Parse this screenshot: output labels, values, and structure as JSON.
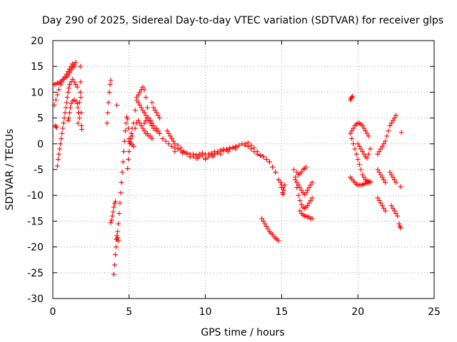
{
  "chart_data": {
    "type": "scatter",
    "title": "Day 290 of 2025, Sidereal Day-to-day VTEC variation (SDTVAR) for receiver glps",
    "xlabel": "GPS time / hours",
    "ylabel": "SDTVAR / TECUs",
    "xlim": [
      0,
      25
    ],
    "ylim": [
      -30,
      20
    ],
    "xticks": [
      0,
      5,
      10,
      15,
      20,
      25
    ],
    "yticks": [
      -30,
      -25,
      -20,
      -15,
      -10,
      -5,
      0,
      5,
      10,
      15,
      20
    ],
    "xtick_labels": [
      "0",
      "5",
      "10",
      "15",
      "20",
      "25"
    ],
    "ytick_labels": [
      "-30",
      "-25",
      "-20",
      "-15",
      "-10",
      "-5",
      "0",
      "5",
      "10",
      "15",
      "20"
    ],
    "grid": true,
    "marker": "+",
    "color": "#ff0000",
    "series": [
      {
        "name": "s01",
        "x": [
          0.1,
          0.2,
          0.3,
          0.4,
          0.5,
          0.6,
          0.7,
          0.8,
          0.9,
          1.0,
          1.1,
          1.2,
          1.3,
          1.4
        ],
        "y": [
          7.5,
          8.5,
          9.5,
          10.5,
          11.5,
          12.0,
          12.5,
          13.0,
          13.5,
          14.0,
          14.5,
          15.0,
          15.5,
          15.0
        ]
      },
      {
        "name": "s02",
        "x": [
          0.1,
          0.2,
          0.3,
          0.4,
          0.5,
          0.6,
          0.7,
          0.8,
          0.9,
          1.0,
          1.1,
          1.2,
          1.3,
          1.4,
          1.5
        ],
        "y": [
          11.5,
          11.6,
          11.8,
          11.8,
          12.0,
          12.3,
          12.5,
          12.8,
          13.0,
          13.3,
          13.8,
          14.3,
          14.8,
          15.3,
          15.8
        ]
      },
      {
        "name": "s03",
        "x": [
          0.15,
          0.2,
          0.25
        ],
        "y": [
          3.5,
          3.3,
          3.2
        ]
      },
      {
        "name": "s04",
        "x": [
          0.3,
          0.35,
          0.4,
          0.45,
          0.5,
          0.55,
          0.6,
          0.65,
          0.7,
          0.75,
          0.8,
          0.85,
          0.9,
          0.95,
          1.0,
          1.05,
          1.1,
          1.2,
          1.3,
          1.4,
          1.5,
          1.6
        ],
        "y": [
          -4.3,
          -3.0,
          -2.0,
          -1.0,
          0.0,
          1.0,
          2.0,
          3.0,
          4.0,
          5.0,
          6.0,
          7.0,
          8.0,
          9.0,
          10.0,
          10.8,
          11.5,
          12.0,
          12.5,
          12.0,
          11.5,
          11.0
        ]
      },
      {
        "name": "s05",
        "x": [
          1.0,
          1.05,
          1.1,
          1.15,
          1.2,
          1.3,
          1.4,
          1.5,
          1.6,
          1.65,
          1.7,
          1.75
        ],
        "y": [
          4.5,
          5.0,
          6.0,
          7.0,
          7.8,
          8.3,
          8.5,
          8.3,
          7.8,
          7.0,
          6.0,
          5.0
        ]
      },
      {
        "name": "s06",
        "x": [
          1.8,
          1.82,
          1.84,
          1.86,
          1.88,
          1.9
        ],
        "y": [
          15.0,
          12.0,
          9.0,
          6.0,
          3.5,
          2.8
        ]
      },
      {
        "name": "s07",
        "x": [
          1.65,
          1.7,
          1.75,
          1.8
        ],
        "y": [
          4.0,
          6.0,
          8.0,
          10.0
        ]
      },
      {
        "name": "s08",
        "x": [
          3.55,
          3.6,
          3.65,
          3.7,
          3.75,
          3.8
        ],
        "y": [
          4.0,
          6.0,
          8.0,
          10.0,
          11.5,
          12.3
        ]
      },
      {
        "name": "s09",
        "x": [
          3.8,
          3.85,
          3.9,
          3.95,
          4.0,
          4.05,
          4.1
        ],
        "y": [
          -15.3,
          -14.8,
          -14.0,
          -13.2,
          -12.3,
          -11.6,
          -11.2
        ]
      },
      {
        "name": "s10",
        "x": [
          4.0,
          4.05,
          4.1,
          4.15,
          4.2,
          4.25,
          4.3,
          4.35,
          4.4,
          4.45,
          4.5,
          4.55,
          4.6,
          4.65,
          4.7,
          4.75,
          4.8,
          4.85,
          4.9,
          4.95,
          5.0
        ],
        "y": [
          -25.3,
          -23.5,
          -21.5,
          -20.0,
          -18.5,
          -17.0,
          -15.5,
          -13.5,
          -11.5,
          -9.5,
          -7.5,
          -5.5,
          -3.5,
          -1.5,
          0.5,
          2.5,
          4.0,
          5.2,
          4.8,
          3.0,
          1.0
        ]
      },
      {
        "name": "s11",
        "x": [
          4.15,
          4.2,
          4.25,
          4.3
        ],
        "y": [
          -18.5,
          -17.8,
          -18.2,
          -18.8
        ]
      },
      {
        "name": "s12",
        "x": [
          4.2
        ],
        "y": [
          7.5
        ]
      },
      {
        "name": "s13",
        "x": [
          4.9,
          4.95,
          5.0,
          5.05,
          5.1,
          5.15,
          5.2
        ],
        "y": [
          -4.8,
          -3.0,
          -1.5,
          0.0,
          1.0,
          2.0,
          3.0
        ]
      },
      {
        "name": "s14",
        "x": [
          5.0,
          5.1,
          5.2,
          5.3
        ],
        "y": [
          0.5,
          0.2,
          -0.2,
          -0.5
        ]
      },
      {
        "name": "s15",
        "x": [
          5.2,
          5.3,
          5.4,
          5.5,
          5.6,
          5.7,
          5.8,
          5.9,
          6.0,
          6.1,
          6.2,
          6.3
        ],
        "y": [
          1.5,
          4.0,
          6.5,
          8.5,
          9.5,
          10.0,
          10.5,
          11.0,
          10.5,
          9.0,
          7.0,
          5.0
        ]
      },
      {
        "name": "s16",
        "x": [
          5.4,
          5.5,
          5.6,
          5.7,
          5.8,
          5.9,
          6.0,
          6.1,
          6.2,
          6.3,
          6.4,
          6.5
        ],
        "y": [
          3.0,
          4.0,
          4.5,
          4.0,
          3.5,
          3.0,
          2.5,
          2.0,
          2.0,
          1.5,
          1.5,
          1.0
        ]
      },
      {
        "name": "s17",
        "x": [
          5.5,
          5.6,
          5.7,
          5.8,
          5.9,
          6.0,
          6.1,
          6.2,
          6.3,
          6.4,
          6.5,
          6.6,
          6.8,
          7.0
        ],
        "y": [
          9.0,
          8.0,
          7.5,
          7.0,
          6.5,
          6.0,
          5.5,
          5.0,
          4.5,
          4.0,
          3.5,
          3.0,
          2.5,
          2.0
        ]
      },
      {
        "name": "s18",
        "x": [
          6.5,
          6.6,
          6.7,
          6.8,
          6.9,
          7.0
        ],
        "y": [
          8.0,
          7.0,
          6.5,
          6.0,
          5.5,
          5.0
        ]
      },
      {
        "name": "s19",
        "x": [
          6.0,
          6.1,
          6.2,
          6.3,
          6.4,
          6.5,
          6.6,
          6.7,
          6.8,
          6.9,
          7.0,
          7.2,
          7.4,
          7.6,
          7.8,
          8.0,
          8.2,
          8.4,
          8.6,
          8.8,
          9.0,
          9.2,
          9.4,
          9.6,
          9.8,
          10.0,
          10.2,
          10.4,
          10.6,
          10.8,
          11.0,
          11.2,
          11.4,
          11.6,
          11.8,
          12.0,
          12.2,
          12.4,
          12.6,
          12.8,
          13.0,
          13.2,
          13.4,
          13.6,
          13.8,
          14.0,
          14.2,
          14.4,
          14.6,
          14.8,
          15.0
        ],
        "y": [
          4.0,
          4.5,
          5.0,
          5.0,
          4.5,
          4.0,
          3.5,
          3.0,
          3.0,
          2.5,
          2.0,
          1.0,
          0.5,
          0.0,
          -0.5,
          -0.8,
          -1.0,
          -1.3,
          -1.6,
          -1.8,
          -2.0,
          -2.0,
          -2.2,
          -2.0,
          -1.8,
          -2.0,
          -2.0,
          -1.8,
          -1.5,
          -1.5,
          -1.2,
          -1.0,
          -1.0,
          -0.8,
          -0.7,
          -0.5,
          -0.3,
          0.0,
          -0.3,
          -0.5,
          -1.0,
          -1.5,
          -2.0,
          -2.3,
          -2.5,
          -3.0,
          -3.5,
          -4.5,
          -5.5,
          -7.0,
          -8.5
        ]
      },
      {
        "name": "s20",
        "x": [
          7.5,
          7.6,
          7.7,
          7.8,
          7.9,
          8.0,
          8.2,
          8.4,
          8.6,
          8.8,
          9.0,
          9.2,
          9.4,
          9.6,
          9.8,
          10.0,
          10.2,
          10.4,
          10.6,
          10.8,
          11.0,
          11.2,
          11.4,
          11.6,
          11.8,
          12.0
        ],
        "y": [
          2.5,
          2.0,
          1.5,
          1.0,
          0.5,
          0.0,
          -0.3,
          -0.8,
          -1.5,
          -2.0,
          -2.5,
          -2.5,
          -2.8,
          -2.5,
          -2.3,
          -2.8,
          -2.5,
          -2.2,
          -2.0,
          -1.8,
          -1.5,
          -1.3,
          -1.2,
          -1.0,
          -0.8,
          -0.6
        ]
      },
      {
        "name": "s21",
        "x": [
          8.0,
          8.5,
          9.0,
          9.5,
          10.0,
          10.5,
          11.0,
          11.5,
          12.0
        ],
        "y": [
          -1.5,
          -1.8,
          -2.5,
          -2.8,
          -3.0,
          -2.5,
          -2.0,
          -1.5,
          -1.0
        ]
      },
      {
        "name": "s22",
        "x": [
          12.6,
          12.8,
          13.0,
          13.2,
          13.4,
          13.6,
          13.8,
          14.0,
          14.2,
          14.4,
          14.6,
          14.8,
          15.0,
          15.1
        ],
        "y": [
          0.0,
          0.2,
          -0.3,
          -0.8,
          -1.5,
          -2.2,
          -2.5,
          -3.0,
          -3.5,
          -4.5,
          -5.5,
          -7.0,
          -8.0,
          -8.5
        ]
      },
      {
        "name": "s23",
        "x": [
          13.7,
          13.8,
          13.9,
          14.0,
          14.1,
          14.2,
          14.3,
          14.4,
          14.5,
          14.6,
          14.7,
          14.8
        ],
        "y": [
          -14.5,
          -15.0,
          -15.5,
          -16.0,
          -16.5,
          -17.0,
          -17.3,
          -17.6,
          -18.0,
          -18.3,
          -18.5,
          -18.8
        ]
      },
      {
        "name": "s24",
        "x": [
          14.95,
          15.0,
          15.05,
          15.1,
          15.15,
          15.2
        ],
        "y": [
          -7.5,
          -8.5,
          -9.5,
          -9.8,
          -9.0,
          -8.0
        ]
      },
      {
        "name": "s25",
        "x": [
          15.8,
          15.9,
          16.0,
          16.1,
          16.2,
          16.3,
          16.4,
          16.5,
          16.6,
          16.7,
          16.8,
          16.9,
          17.0
        ],
        "y": [
          -5.0,
          -6.5,
          -7.5,
          -8.0,
          -8.5,
          -9.0,
          -9.5,
          -9.8,
          -9.5,
          -9.0,
          -8.5,
          -8.0,
          -7.5
        ]
      },
      {
        "name": "s26",
        "x": [
          15.9,
          16.0,
          16.1,
          16.2,
          16.3,
          16.4,
          16.5,
          16.6,
          16.7,
          16.8,
          16.9,
          17.0
        ],
        "y": [
          -7.0,
          -8.5,
          -10.0,
          -11.0,
          -11.8,
          -12.3,
          -12.5,
          -12.3,
          -12.0,
          -11.5,
          -11.0,
          -10.5
        ]
      },
      {
        "name": "s27",
        "x": [
          16.0,
          16.1,
          16.2,
          16.3,
          16.4,
          16.5,
          16.6
        ],
        "y": [
          -5.5,
          -6.0,
          -5.8,
          -5.5,
          -5.0,
          -4.8,
          -4.5
        ]
      },
      {
        "name": "s28",
        "x": [
          16.2,
          16.3,
          16.4,
          16.5,
          16.6,
          16.7,
          16.8,
          16.9,
          17.0
        ],
        "y": [
          -13.0,
          -13.5,
          -13.8,
          -14.0,
          -14.0,
          -14.2,
          -14.2,
          -14.5,
          -14.5
        ]
      },
      {
        "name": "s29",
        "x": [
          19.5,
          19.55,
          19.6,
          19.65
        ],
        "y": [
          8.5,
          8.8,
          9.0,
          9.2
        ]
      },
      {
        "name": "s30",
        "x": [
          19.5,
          19.6,
          19.7,
          19.8,
          19.9,
          20.0,
          20.1,
          20.2,
          20.3,
          20.4,
          20.5,
          20.6,
          20.7
        ],
        "y": [
          2.0,
          2.5,
          3.0,
          3.5,
          3.8,
          4.0,
          4.0,
          3.8,
          3.5,
          3.0,
          2.5,
          2.0,
          1.5
        ]
      },
      {
        "name": "s31",
        "x": [
          19.5,
          19.6,
          19.7,
          19.8,
          19.9,
          20.0,
          20.1,
          20.2,
          20.3,
          20.4,
          20.5,
          20.6,
          20.7,
          20.8
        ],
        "y": [
          -6.5,
          -6.8,
          -7.2,
          -7.5,
          -7.8,
          -8.0,
          -8.0,
          -8.0,
          -7.9,
          -7.8,
          -7.7,
          -7.6,
          -7.5,
          -7.3
        ]
      },
      {
        "name": "s32",
        "x": [
          19.6,
          19.7,
          19.8,
          19.9,
          20.0,
          20.1,
          20.2,
          20.3,
          20.4,
          20.5,
          20.6,
          20.7,
          20.8
        ],
        "y": [
          1.0,
          0.0,
          -1.0,
          -2.0,
          -3.0,
          -4.0,
          -5.0,
          -6.0,
          -6.5,
          -7.0,
          -7.2,
          -7.3,
          -7.5
        ]
      },
      {
        "name": "s33",
        "x": [
          20.0,
          20.1,
          20.2,
          20.3,
          20.4,
          20.5,
          20.6,
          20.7,
          20.8
        ],
        "y": [
          0.0,
          -0.5,
          -1.0,
          -1.5,
          -2.0,
          -2.5,
          -2.8,
          -2.0,
          -1.0
        ]
      },
      {
        "name": "s34",
        "x": [
          21.3,
          21.4,
          21.5,
          21.6,
          21.7,
          21.8,
          21.9,
          22.0
        ],
        "y": [
          -2.0,
          -1.5,
          -1.0,
          -0.5,
          0.0,
          0.5,
          1.5,
          2.5
        ]
      },
      {
        "name": "s35",
        "x": [
          21.3,
          21.4,
          21.5,
          21.6,
          21.7,
          21.8
        ],
        "y": [
          -5.0,
          -5.5,
          -6.0,
          -6.5,
          -7.0,
          -7.5
        ]
      },
      {
        "name": "s36",
        "x": [
          21.3,
          21.4,
          21.5,
          21.6,
          21.7,
          21.8
        ],
        "y": [
          -10.5,
          -11.0,
          -11.5,
          -12.0,
          -12.5,
          -13.0
        ]
      },
      {
        "name": "s37",
        "x": [
          22.1,
          22.2,
          22.3,
          22.4,
          22.5
        ],
        "y": [
          3.5,
          4.0,
          4.5,
          5.0,
          5.5
        ]
      },
      {
        "name": "s38",
        "x": [
          22.1,
          22.2,
          22.3,
          22.4,
          22.5
        ],
        "y": [
          -5.5,
          -6.0,
          -6.5,
          -7.0,
          -7.5
        ]
      },
      {
        "name": "s39",
        "x": [
          22.2,
          22.3,
          22.4,
          22.5,
          22.6
        ],
        "y": [
          -12.0,
          -12.5,
          -13.0,
          -13.5,
          -14.0
        ]
      },
      {
        "name": "s40",
        "x": [
          22.7,
          22.75,
          22.8
        ],
        "y": [
          -15.5,
          -16.0,
          -16.3
        ]
      },
      {
        "name": "s41",
        "x": [
          22.8
        ],
        "y": [
          -8.3
        ]
      },
      {
        "name": "s42",
        "x": [
          22.85
        ],
        "y": [
          2.2
        ]
      }
    ]
  }
}
